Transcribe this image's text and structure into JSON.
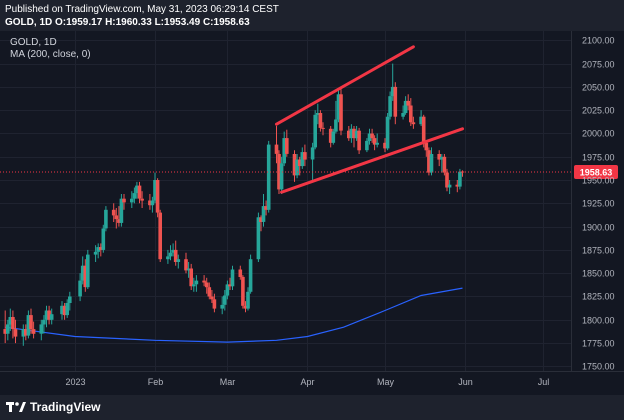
{
  "header": {
    "published": "Published on TradingView.com, May 31, 2023 06:29:14 CEST",
    "symbol_interval": "GOLD, 1D",
    "ohlc": [
      {
        "key": "O:",
        "value": "1959.17"
      },
      {
        "key": "H:",
        "value": "1960.33"
      },
      {
        "key": "L:",
        "value": "1953.49"
      },
      {
        "key": "C:",
        "value": "1958.63"
      }
    ]
  },
  "legend": {
    "symbol": "GOLD, 1D",
    "ma": "MA (200, close, 0)"
  },
  "footer": {
    "brand": "TradingView"
  },
  "colors": {
    "up": "#26a69a",
    "down": "#ef5350",
    "ma_line": "#2962ff",
    "trendline": "#f23645",
    "price_tag": "#f23645"
  },
  "chart_data": {
    "type": "candlestick",
    "last_price_label": "1958.63",
    "y_ticks": [
      "2100.00",
      "2075.00",
      "2050.00",
      "2025.00",
      "2000.00",
      "1975.00",
      "1950.00",
      "1925.00",
      "1900.00",
      "1875.00",
      "1850.00",
      "1825.00",
      "1800.00",
      "1775.00",
      "1750.00"
    ],
    "x_ticks": [
      {
        "label": "2023",
        "date": "2023-01-01"
      },
      {
        "label": "Feb",
        "date": "2023-02-01"
      },
      {
        "label": "Mar",
        "date": "2023-03-01"
      },
      {
        "label": "Apr",
        "date": "2023-04-01"
      },
      {
        "label": "May",
        "date": "2023-05-01"
      },
      {
        "label": "Jun",
        "date": "2023-06-01"
      },
      {
        "label": "Jul",
        "date": "2023-07-01"
      }
    ],
    "ylim": [
      1745,
      2110
    ],
    "xlim": [
      "2022-12-03",
      "2023-07-12"
    ],
    "candles": [
      {
        "date": "2022-12-05",
        "o": 1790,
        "h": 1810,
        "l": 1775,
        "c": 1785
      },
      {
        "date": "2022-12-06",
        "o": 1785,
        "h": 1800,
        "l": 1778,
        "c": 1795
      },
      {
        "date": "2022-12-07",
        "o": 1795,
        "h": 1812,
        "l": 1788,
        "c": 1803
      },
      {
        "date": "2022-12-08",
        "o": 1803,
        "h": 1810,
        "l": 1780,
        "c": 1790
      },
      {
        "date": "2022-12-09",
        "o": 1790,
        "h": 1800,
        "l": 1775,
        "c": 1782
      },
      {
        "date": "2022-12-12",
        "o": 1782,
        "h": 1795,
        "l": 1772,
        "c": 1790
      },
      {
        "date": "2022-12-13",
        "o": 1790,
        "h": 1795,
        "l": 1778,
        "c": 1783
      },
      {
        "date": "2022-12-14",
        "o": 1783,
        "h": 1810,
        "l": 1780,
        "c": 1805
      },
      {
        "date": "2022-12-15",
        "o": 1805,
        "h": 1812,
        "l": 1785,
        "c": 1790
      },
      {
        "date": "2022-12-16",
        "o": 1790,
        "h": 1798,
        "l": 1780,
        "c": 1785
      },
      {
        "date": "2022-12-19",
        "o": 1785,
        "h": 1800,
        "l": 1778,
        "c": 1795
      },
      {
        "date": "2022-12-20",
        "o": 1795,
        "h": 1805,
        "l": 1785,
        "c": 1800
      },
      {
        "date": "2022-12-21",
        "o": 1800,
        "h": 1815,
        "l": 1792,
        "c": 1810
      },
      {
        "date": "2022-12-22",
        "o": 1810,
        "h": 1815,
        "l": 1795,
        "c": 1800
      },
      {
        "date": "2022-12-23",
        "o": 1800,
        "h": 1812,
        "l": 1795,
        "c": 1806
      },
      {
        "date": "2022-12-27",
        "o": 1806,
        "h": 1820,
        "l": 1800,
        "c": 1815
      },
      {
        "date": "2022-12-28",
        "o": 1815,
        "h": 1818,
        "l": 1800,
        "c": 1805
      },
      {
        "date": "2022-12-29",
        "o": 1805,
        "h": 1822,
        "l": 1802,
        "c": 1818
      },
      {
        "date": "2022-12-30",
        "o": 1818,
        "h": 1830,
        "l": 1810,
        "c": 1825
      },
      {
        "date": "2023-01-03",
        "o": 1825,
        "h": 1850,
        "l": 1820,
        "c": 1842
      },
      {
        "date": "2023-01-04",
        "o": 1842,
        "h": 1868,
        "l": 1838,
        "c": 1858
      },
      {
        "date": "2023-01-05",
        "o": 1858,
        "h": 1865,
        "l": 1830,
        "c": 1835
      },
      {
        "date": "2023-01-06",
        "o": 1835,
        "h": 1875,
        "l": 1833,
        "c": 1870
      },
      {
        "date": "2023-01-09",
        "o": 1870,
        "h": 1880,
        "l": 1862,
        "c": 1873
      },
      {
        "date": "2023-01-10",
        "o": 1873,
        "h": 1882,
        "l": 1866,
        "c": 1878
      },
      {
        "date": "2023-01-11",
        "o": 1878,
        "h": 1882,
        "l": 1868,
        "c": 1875
      },
      {
        "date": "2023-01-12",
        "o": 1875,
        "h": 1902,
        "l": 1872,
        "c": 1898
      },
      {
        "date": "2023-01-13",
        "o": 1898,
        "h": 1922,
        "l": 1895,
        "c": 1918
      },
      {
        "date": "2023-01-16",
        "o": 1918,
        "h": 1925,
        "l": 1905,
        "c": 1912
      },
      {
        "date": "2023-01-17",
        "o": 1912,
        "h": 1920,
        "l": 1898,
        "c": 1908
      },
      {
        "date": "2023-01-18",
        "o": 1908,
        "h": 1922,
        "l": 1900,
        "c": 1904
      },
      {
        "date": "2023-01-19",
        "o": 1904,
        "h": 1935,
        "l": 1900,
        "c": 1930
      },
      {
        "date": "2023-01-20",
        "o": 1930,
        "h": 1935,
        "l": 1918,
        "c": 1926
      },
      {
        "date": "2023-01-23",
        "o": 1926,
        "h": 1938,
        "l": 1920,
        "c": 1930
      },
      {
        "date": "2023-01-24",
        "o": 1930,
        "h": 1942,
        "l": 1925,
        "c": 1936
      },
      {
        "date": "2023-01-25",
        "o": 1936,
        "h": 1948,
        "l": 1930,
        "c": 1944
      },
      {
        "date": "2023-01-26",
        "o": 1944,
        "h": 1948,
        "l": 1925,
        "c": 1930
      },
      {
        "date": "2023-01-27",
        "o": 1930,
        "h": 1938,
        "l": 1920,
        "c": 1928
      },
      {
        "date": "2023-01-30",
        "o": 1928,
        "h": 1935,
        "l": 1918,
        "c": 1923
      },
      {
        "date": "2023-01-31",
        "o": 1923,
        "h": 1932,
        "l": 1915,
        "c": 1928
      },
      {
        "date": "2023-02-01",
        "o": 1928,
        "h": 1958,
        "l": 1925,
        "c": 1950
      },
      {
        "date": "2023-02-02",
        "o": 1950,
        "h": 1952,
        "l": 1910,
        "c": 1915
      },
      {
        "date": "2023-02-03",
        "o": 1915,
        "h": 1918,
        "l": 1862,
        "c": 1865
      },
      {
        "date": "2023-02-06",
        "o": 1865,
        "h": 1875,
        "l": 1860,
        "c": 1868
      },
      {
        "date": "2023-02-07",
        "o": 1868,
        "h": 1880,
        "l": 1864,
        "c": 1872
      },
      {
        "date": "2023-02-08",
        "o": 1872,
        "h": 1882,
        "l": 1868,
        "c": 1875
      },
      {
        "date": "2023-02-09",
        "o": 1875,
        "h": 1885,
        "l": 1858,
        "c": 1862
      },
      {
        "date": "2023-02-10",
        "o": 1862,
        "h": 1870,
        "l": 1855,
        "c": 1865
      },
      {
        "date": "2023-02-13",
        "o": 1865,
        "h": 1872,
        "l": 1850,
        "c": 1853
      },
      {
        "date": "2023-02-14",
        "o": 1853,
        "h": 1862,
        "l": 1845,
        "c": 1855
      },
      {
        "date": "2023-02-15",
        "o": 1855,
        "h": 1860,
        "l": 1832,
        "c": 1836
      },
      {
        "date": "2023-02-16",
        "o": 1836,
        "h": 1845,
        "l": 1830,
        "c": 1838
      },
      {
        "date": "2023-02-17",
        "o": 1838,
        "h": 1848,
        "l": 1830,
        "c": 1842
      },
      {
        "date": "2023-02-20",
        "o": 1842,
        "h": 1848,
        "l": 1836,
        "c": 1840
      },
      {
        "date": "2023-02-21",
        "o": 1840,
        "h": 1845,
        "l": 1828,
        "c": 1835
      },
      {
        "date": "2023-02-22",
        "o": 1835,
        "h": 1840,
        "l": 1822,
        "c": 1825
      },
      {
        "date": "2023-02-23",
        "o": 1825,
        "h": 1832,
        "l": 1818,
        "c": 1822
      },
      {
        "date": "2023-02-24",
        "o": 1822,
        "h": 1828,
        "l": 1808,
        "c": 1812
      },
      {
        "date": "2023-02-27",
        "o": 1812,
        "h": 1825,
        "l": 1806,
        "c": 1816
      },
      {
        "date": "2023-02-28",
        "o": 1816,
        "h": 1832,
        "l": 1810,
        "c": 1826
      },
      {
        "date": "2023-03-01",
        "o": 1826,
        "h": 1842,
        "l": 1822,
        "c": 1838
      },
      {
        "date": "2023-03-02",
        "o": 1838,
        "h": 1845,
        "l": 1832,
        "c": 1836
      },
      {
        "date": "2023-03-03",
        "o": 1836,
        "h": 1858,
        "l": 1832,
        "c": 1854
      },
      {
        "date": "2023-03-06",
        "o": 1854,
        "h": 1858,
        "l": 1843,
        "c": 1846
      },
      {
        "date": "2023-03-07",
        "o": 1846,
        "h": 1848,
        "l": 1812,
        "c": 1815
      },
      {
        "date": "2023-03-08",
        "o": 1815,
        "h": 1820,
        "l": 1808,
        "c": 1812
      },
      {
        "date": "2023-03-09",
        "o": 1812,
        "h": 1835,
        "l": 1810,
        "c": 1830
      },
      {
        "date": "2023-03-10",
        "o": 1830,
        "h": 1870,
        "l": 1828,
        "c": 1865
      },
      {
        "date": "2023-03-13",
        "o": 1865,
        "h": 1915,
        "l": 1862,
        "c": 1910
      },
      {
        "date": "2023-03-14",
        "o": 1910,
        "h": 1912,
        "l": 1895,
        "c": 1905
      },
      {
        "date": "2023-03-15",
        "o": 1905,
        "h": 1935,
        "l": 1900,
        "c": 1922
      },
      {
        "date": "2023-03-16",
        "o": 1922,
        "h": 1928,
        "l": 1912,
        "c": 1918
      },
      {
        "date": "2023-03-17",
        "o": 1918,
        "h": 1992,
        "l": 1915,
        "c": 1988
      },
      {
        "date": "2023-03-20",
        "o": 1988,
        "h": 2008,
        "l": 1968,
        "c": 1978
      },
      {
        "date": "2023-03-21",
        "o": 1978,
        "h": 1982,
        "l": 1935,
        "c": 1940
      },
      {
        "date": "2023-03-22",
        "o": 1940,
        "h": 1975,
        "l": 1935,
        "c": 1968
      },
      {
        "date": "2023-03-23",
        "o": 1968,
        "h": 2002,
        "l": 1965,
        "c": 1995
      },
      {
        "date": "2023-03-24",
        "o": 1995,
        "h": 2004,
        "l": 1975,
        "c": 1978
      },
      {
        "date": "2023-03-27",
        "o": 1978,
        "h": 1982,
        "l": 1948,
        "c": 1955
      },
      {
        "date": "2023-03-28",
        "o": 1955,
        "h": 1978,
        "l": 1952,
        "c": 1972
      },
      {
        "date": "2023-03-29",
        "o": 1972,
        "h": 1975,
        "l": 1955,
        "c": 1965
      },
      {
        "date": "2023-03-30",
        "o": 1965,
        "h": 1985,
        "l": 1962,
        "c": 1980
      },
      {
        "date": "2023-03-31",
        "o": 1980,
        "h": 1988,
        "l": 1965,
        "c": 1972
      },
      {
        "date": "2023-04-03",
        "o": 1972,
        "h": 1990,
        "l": 1948,
        "c": 1985
      },
      {
        "date": "2023-04-04",
        "o": 1985,
        "h": 2025,
        "l": 1983,
        "c": 2020
      },
      {
        "date": "2023-04-05",
        "o": 2020,
        "h": 2032,
        "l": 2010,
        "c": 2022
      },
      {
        "date": "2023-04-06",
        "o": 2022,
        "h": 2025,
        "l": 2002,
        "c": 2006
      },
      {
        "date": "2023-04-07",
        "o": 2006,
        "h": 2012,
        "l": 1998,
        "c": 2005
      },
      {
        "date": "2023-04-10",
        "o": 2005,
        "h": 2008,
        "l": 1985,
        "c": 1990
      },
      {
        "date": "2023-04-11",
        "o": 1990,
        "h": 2005,
        "l": 1988,
        "c": 2002
      },
      {
        "date": "2023-04-12",
        "o": 2002,
        "h": 2035,
        "l": 2000,
        "c": 2015
      },
      {
        "date": "2023-04-13",
        "o": 2015,
        "h": 2048,
        "l": 2012,
        "c": 2042
      },
      {
        "date": "2023-04-14",
        "o": 2042,
        "h": 2050,
        "l": 1998,
        "c": 2003
      },
      {
        "date": "2023-04-17",
        "o": 2003,
        "h": 2008,
        "l": 1992,
        "c": 1995
      },
      {
        "date": "2023-04-18",
        "o": 1995,
        "h": 2010,
        "l": 1990,
        "c": 2005
      },
      {
        "date": "2023-04-19",
        "o": 2005,
        "h": 2008,
        "l": 1985,
        "c": 1995
      },
      {
        "date": "2023-04-20",
        "o": 1995,
        "h": 2008,
        "l": 1992,
        "c": 2003
      },
      {
        "date": "2023-04-21",
        "o": 2003,
        "h": 2006,
        "l": 1978,
        "c": 1982
      },
      {
        "date": "2023-04-24",
        "o": 1982,
        "h": 1995,
        "l": 1980,
        "c": 1992
      },
      {
        "date": "2023-04-25",
        "o": 1992,
        "h": 2005,
        "l": 1988,
        "c": 2000
      },
      {
        "date": "2023-04-26",
        "o": 2000,
        "h": 2005,
        "l": 1990,
        "c": 1995
      },
      {
        "date": "2023-04-27",
        "o": 1995,
        "h": 1998,
        "l": 1982,
        "c": 1988
      },
      {
        "date": "2023-04-28",
        "o": 1988,
        "h": 2000,
        "l": 1985,
        "c": 1990
      },
      {
        "date": "2023-05-01",
        "o": 1990,
        "h": 1995,
        "l": 1980,
        "c": 1984
      },
      {
        "date": "2023-05-02",
        "o": 1984,
        "h": 2022,
        "l": 1982,
        "c": 2018
      },
      {
        "date": "2023-05-03",
        "o": 2018,
        "h": 2045,
        "l": 2015,
        "c": 2040
      },
      {
        "date": "2023-05-04",
        "o": 2040,
        "h": 2075,
        "l": 2035,
        "c": 2050
      },
      {
        "date": "2023-05-05",
        "o": 2050,
        "h": 2055,
        "l": 2010,
        "c": 2018
      },
      {
        "date": "2023-05-08",
        "o": 2018,
        "h": 2030,
        "l": 2015,
        "c": 2022
      },
      {
        "date": "2023-05-09",
        "o": 2022,
        "h": 2040,
        "l": 2020,
        "c": 2035
      },
      {
        "date": "2023-05-10",
        "o": 2035,
        "h": 2042,
        "l": 2025,
        "c": 2030
      },
      {
        "date": "2023-05-11",
        "o": 2030,
        "h": 2038,
        "l": 2008,
        "c": 2012
      },
      {
        "date": "2023-05-12",
        "o": 2012,
        "h": 2018,
        "l": 2005,
        "c": 2010
      },
      {
        "date": "2023-05-15",
        "o": 2010,
        "h": 2025,
        "l": 2008,
        "c": 2018
      },
      {
        "date": "2023-05-16",
        "o": 2018,
        "h": 2020,
        "l": 1985,
        "c": 1990
      },
      {
        "date": "2023-05-17",
        "o": 1990,
        "h": 1992,
        "l": 1975,
        "c": 1982
      },
      {
        "date": "2023-05-18",
        "o": 1982,
        "h": 1985,
        "l": 1955,
        "c": 1958
      },
      {
        "date": "2023-05-19",
        "o": 1958,
        "h": 1985,
        "l": 1955,
        "c": 1978
      },
      {
        "date": "2023-05-22",
        "o": 1978,
        "h": 1982,
        "l": 1965,
        "c": 1972
      },
      {
        "date": "2023-05-23",
        "o": 1972,
        "h": 1978,
        "l": 1958,
        "c": 1975
      },
      {
        "date": "2023-05-24",
        "o": 1975,
        "h": 1978,
        "l": 1955,
        "c": 1958
      },
      {
        "date": "2023-05-25",
        "o": 1958,
        "h": 1962,
        "l": 1938,
        "c": 1942
      },
      {
        "date": "2023-05-26",
        "o": 1942,
        "h": 1950,
        "l": 1935,
        "c": 1945
      },
      {
        "date": "2023-05-29",
        "o": 1945,
        "h": 1950,
        "l": 1937,
        "c": 1943
      },
      {
        "date": "2023-05-30",
        "o": 1943,
        "h": 1962,
        "l": 1940,
        "c": 1959
      },
      {
        "date": "2023-05-31",
        "o": 1959.17,
        "h": 1960.33,
        "l": 1953.49,
        "c": 1958.63
      }
    ],
    "ma200": [
      {
        "date": "2022-12-05",
        "v": 1792
      },
      {
        "date": "2023-01-01",
        "v": 1782
      },
      {
        "date": "2023-02-01",
        "v": 1778
      },
      {
        "date": "2023-03-01",
        "v": 1776
      },
      {
        "date": "2023-03-20",
        "v": 1778
      },
      {
        "date": "2023-04-01",
        "v": 1782
      },
      {
        "date": "2023-04-15",
        "v": 1792
      },
      {
        "date": "2023-05-01",
        "v": 1810
      },
      {
        "date": "2023-05-15",
        "v": 1826
      },
      {
        "date": "2023-05-31",
        "v": 1834
      }
    ],
    "trendlines": [
      {
        "name": "upper-channel",
        "from": {
          "date": "2023-03-20",
          "v": 2010
        },
        "to": {
          "date": "2023-05-12",
          "v": 2093
        }
      },
      {
        "name": "lower-channel",
        "from": {
          "date": "2023-03-22",
          "v": 1937
        },
        "to": {
          "date": "2023-05-31",
          "v": 2005
        }
      }
    ]
  }
}
